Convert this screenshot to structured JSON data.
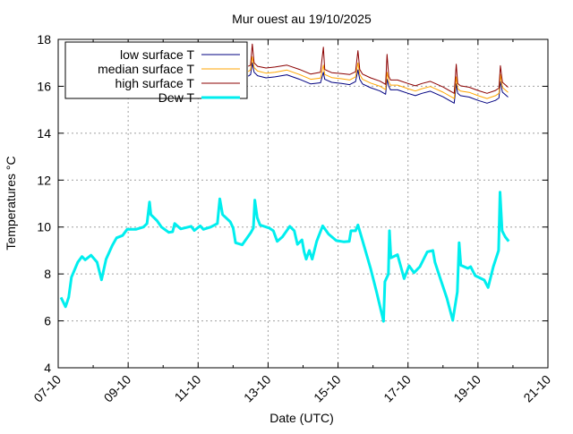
{
  "chart_data": {
    "type": "line",
    "title": "Mur ouest au 19/10/2025",
    "xlabel": "Date (UTC)",
    "ylabel": "Temperatures °C",
    "x_unit": "day of October 2025",
    "xlim": [
      7,
      21
    ],
    "ylim": [
      4,
      18
    ],
    "grid": true,
    "legend_position": "top-left",
    "x_ticks": [
      {
        "value": 7,
        "label": "07-10"
      },
      {
        "value": 9,
        "label": "09-10"
      },
      {
        "value": 11,
        "label": "11-10"
      },
      {
        "value": 13,
        "label": "13-10"
      },
      {
        "value": 15,
        "label": "15-10"
      },
      {
        "value": 17,
        "label": "17-10"
      },
      {
        "value": 19,
        "label": "19-10"
      },
      {
        "value": 21,
        "label": "21-10"
      }
    ],
    "y_ticks": [
      {
        "value": 4,
        "label": "4"
      },
      {
        "value": 6,
        "label": "6"
      },
      {
        "value": 8,
        "label": "8"
      },
      {
        "value": 10,
        "label": "10"
      },
      {
        "value": 12,
        "label": "12"
      },
      {
        "value": 14,
        "label": "14"
      },
      {
        "value": 16,
        "label": "16"
      },
      {
        "value": 18,
        "label": "18"
      }
    ],
    "series": [
      {
        "name": "low surface T",
        "color": "#000080",
        "width": 1,
        "x": [
          12.43,
          12.5,
          12.55,
          12.6,
          12.7,
          12.94,
          13.2,
          13.54,
          13.9,
          14.22,
          14.5,
          14.58,
          14.62,
          14.7,
          14.82,
          15.1,
          15.33,
          15.5,
          15.57,
          15.62,
          15.7,
          15.93,
          16.2,
          16.36,
          16.4,
          16.45,
          16.5,
          16.7,
          17.0,
          17.21,
          17.4,
          17.64,
          18.0,
          18.32,
          18.38,
          18.42,
          18.5,
          18.75,
          19.0,
          19.26,
          19.5,
          19.6,
          19.64,
          19.7,
          19.86
        ],
        "y": [
          16.43,
          16.5,
          17.0,
          16.6,
          16.45,
          16.36,
          16.4,
          16.49,
          16.3,
          16.1,
          16.15,
          16.6,
          16.3,
          16.25,
          16.17,
          16.12,
          16.07,
          16.2,
          16.7,
          16.3,
          16.1,
          15.94,
          15.8,
          15.66,
          16.3,
          16.0,
          15.85,
          15.85,
          15.7,
          15.6,
          15.7,
          15.79,
          15.55,
          15.28,
          16.1,
          15.7,
          15.6,
          15.54,
          15.4,
          15.28,
          15.4,
          15.5,
          16.2,
          15.75,
          15.54
        ]
      },
      {
        "name": "median surface T",
        "color": "#ffa500",
        "width": 1,
        "x": [
          12.43,
          12.5,
          12.55,
          12.6,
          12.7,
          12.94,
          13.2,
          13.54,
          13.9,
          14.22,
          14.5,
          14.58,
          14.62,
          14.7,
          14.82,
          15.1,
          15.33,
          15.5,
          15.57,
          15.62,
          15.7,
          15.93,
          16.2,
          16.36,
          16.4,
          16.45,
          16.5,
          16.7,
          17.0,
          17.21,
          17.4,
          17.64,
          18.0,
          18.32,
          18.38,
          18.42,
          18.5,
          18.75,
          19.0,
          19.26,
          19.5,
          19.6,
          19.64,
          19.7,
          19.86
        ],
        "y": [
          16.63,
          16.7,
          17.26,
          16.8,
          16.65,
          16.56,
          16.6,
          16.69,
          16.5,
          16.3,
          16.35,
          16.9,
          16.5,
          16.45,
          16.37,
          16.32,
          16.27,
          16.4,
          17.0,
          16.5,
          16.3,
          16.14,
          16.0,
          15.86,
          16.6,
          16.2,
          16.05,
          16.05,
          15.9,
          15.8,
          15.9,
          15.99,
          15.75,
          15.48,
          16.4,
          15.9,
          15.8,
          15.74,
          15.6,
          15.48,
          15.6,
          15.7,
          16.5,
          15.95,
          15.74
        ]
      },
      {
        "name": "high surface T",
        "color": "#8b0000",
        "width": 1,
        "x": [
          12.43,
          12.5,
          12.55,
          12.6,
          12.7,
          12.94,
          13.2,
          13.54,
          13.9,
          14.22,
          14.5,
          14.58,
          14.62,
          14.7,
          14.82,
          15.1,
          15.33,
          15.5,
          15.57,
          15.62,
          15.7,
          15.93,
          16.2,
          16.36,
          16.4,
          16.45,
          16.5,
          16.7,
          17.0,
          17.21,
          17.4,
          17.64,
          18.0,
          18.32,
          18.38,
          18.42,
          18.5,
          18.75,
          19.0,
          19.26,
          19.5,
          19.6,
          19.64,
          19.7,
          19.86
        ],
        "y": [
          16.85,
          16.9,
          17.8,
          17.0,
          16.85,
          16.78,
          16.82,
          16.9,
          16.72,
          16.52,
          16.6,
          17.67,
          16.72,
          16.66,
          16.58,
          16.54,
          16.5,
          16.62,
          17.52,
          16.72,
          16.52,
          16.36,
          16.22,
          16.08,
          17.36,
          16.42,
          16.27,
          16.27,
          16.12,
          16.02,
          16.12,
          16.21,
          15.97,
          15.7,
          16.94,
          16.12,
          16.02,
          15.96,
          15.82,
          15.7,
          15.82,
          15.92,
          16.88,
          16.17,
          15.96
        ]
      },
      {
        "name": "Dew T",
        "color": "#00eeee",
        "width": 3,
        "x": [
          7.08,
          7.21,
          7.3,
          7.38,
          7.56,
          7.68,
          7.77,
          7.94,
          8.11,
          8.24,
          8.37,
          8.54,
          8.67,
          8.84,
          8.97,
          9.22,
          9.44,
          9.54,
          9.61,
          9.65,
          9.82,
          9.95,
          10.16,
          10.27,
          10.33,
          10.5,
          10.8,
          10.89,
          11.06,
          11.15,
          11.36,
          11.55,
          11.62,
          11.7,
          11.92,
          12.0,
          12.07,
          12.26,
          12.51,
          12.58,
          12.62,
          12.69,
          12.77,
          13.03,
          13.15,
          13.26,
          13.41,
          13.62,
          13.75,
          13.84,
          13.97,
          14.03,
          14.09,
          14.18,
          14.26,
          14.39,
          14.56,
          14.73,
          14.95,
          15.16,
          15.32,
          15.37,
          15.5,
          15.57,
          15.67,
          15.93,
          16.1,
          16.3,
          16.34,
          16.44,
          16.47,
          16.51,
          16.7,
          16.89,
          17.03,
          17.17,
          17.34,
          17.55,
          17.71,
          17.77,
          17.91,
          18.11,
          18.28,
          18.41,
          18.46,
          18.51,
          18.71,
          18.79,
          18.92,
          19.18,
          19.29,
          19.44,
          19.59,
          19.63,
          19.69,
          19.78,
          19.88
        ],
        "y": [
          7.0,
          6.6,
          7.0,
          7.86,
          8.5,
          8.74,
          8.6,
          8.8,
          8.5,
          7.75,
          8.63,
          9.2,
          9.54,
          9.64,
          9.9,
          9.9,
          10.0,
          10.15,
          11.07,
          10.53,
          10.28,
          10.0,
          9.77,
          9.8,
          10.15,
          9.92,
          10.03,
          9.85,
          10.05,
          9.9,
          10.0,
          10.15,
          11.2,
          10.53,
          10.22,
          9.96,
          9.33,
          9.24,
          9.77,
          9.96,
          11.15,
          10.4,
          10.09,
          9.96,
          9.84,
          9.39,
          9.58,
          10.03,
          9.84,
          9.26,
          9.45,
          8.94,
          8.63,
          9.0,
          8.63,
          9.39,
          10.05,
          9.7,
          9.42,
          9.37,
          9.39,
          9.84,
          9.84,
          10.09,
          9.58,
          8.24,
          7.23,
          5.98,
          7.67,
          7.99,
          9.84,
          8.69,
          8.82,
          7.8,
          8.35,
          8.05,
          8.31,
          8.94,
          9.0,
          8.5,
          7.86,
          6.97,
          6.02,
          7.23,
          9.33,
          8.37,
          8.24,
          8.31,
          7.93,
          7.74,
          7.42,
          8.31,
          9.0,
          11.49,
          9.84,
          9.58,
          9.39
        ]
      }
    ]
  }
}
